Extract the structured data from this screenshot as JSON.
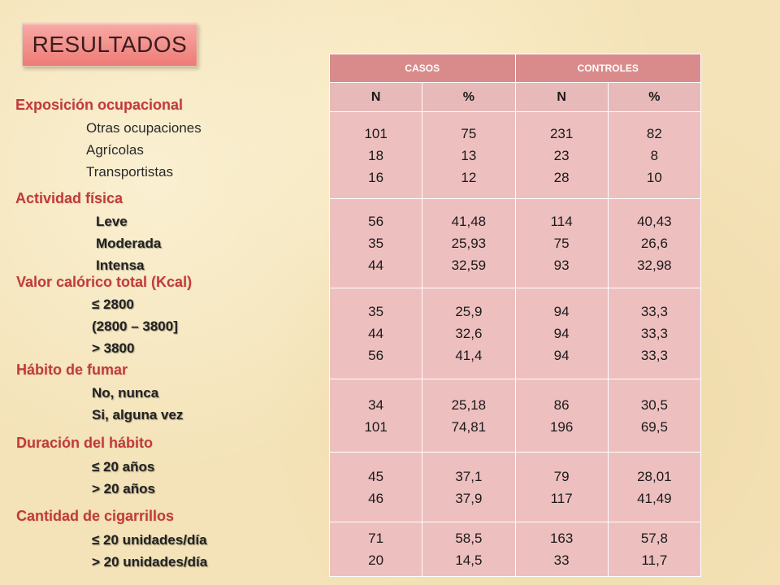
{
  "title": "RESULTADOS",
  "sections": [
    {
      "label": "Exposición ocupacional",
      "items": [
        "Otras ocupaciones",
        "Agrícolas",
        "Transportistas"
      ]
    },
    {
      "label": "Actividad física",
      "items": [
        "Leve",
        "Moderada",
        "Intensa"
      ]
    },
    {
      "label": "Valor calórico total (Kcal)",
      "items": [
        "≤ 2800",
        "(2800 – 3800]",
        "> 3800"
      ]
    },
    {
      "label": "Hábito de fumar",
      "items": [
        "No, nunca",
        "Si, alguna vez"
      ]
    },
    {
      "label": "Duración del hábito",
      "items": [
        "≤ 20 años",
        "> 20 años"
      ]
    },
    {
      "label": "Cantidad de cigarrillos",
      "items": [
        "≤ 20 unidades/día",
        "> 20 unidades/día"
      ]
    }
  ],
  "table": {
    "groups": [
      "CASOS",
      "CONTROLES"
    ],
    "columns": [
      "N",
      "%",
      "N",
      "%"
    ],
    "rows": [
      [
        [
          "101",
          "18",
          "16"
        ],
        [
          "75",
          "13",
          "12"
        ],
        [
          "231",
          "23",
          "28"
        ],
        [
          "82",
          "8",
          "10"
        ]
      ],
      [
        [
          "56",
          "35",
          "44"
        ],
        [
          "41,48",
          "25,93",
          "32,59"
        ],
        [
          "114",
          "75",
          "93"
        ],
        [
          "40,43",
          "26,6",
          "32,98"
        ]
      ],
      [
        [
          "35",
          "44",
          "56"
        ],
        [
          "25,9",
          "32,6",
          "41,4"
        ],
        [
          "94",
          "94",
          "94"
        ],
        [
          "33,3",
          "33,3",
          "33,3"
        ]
      ],
      [
        [
          "34",
          "101"
        ],
        [
          "25,18",
          "74,81"
        ],
        [
          "86",
          "196"
        ],
        [
          "30,5",
          "69,5"
        ]
      ],
      [
        [
          "45",
          "46"
        ],
        [
          "37,1",
          "37,9"
        ],
        [
          "79",
          "117"
        ],
        [
          "28,01",
          "41,49"
        ]
      ],
      [
        [
          "71",
          "20"
        ],
        [
          "58,5",
          "14,5"
        ],
        [
          "163",
          "33"
        ],
        [
          "57,8",
          "11,7"
        ]
      ]
    ]
  },
  "colors": {
    "background": "#f4e3b8",
    "title_box": "#ee7b76",
    "section_label": "#c23a3a",
    "table_header": "#d98b8b",
    "table_cell": "#eebfbf"
  }
}
